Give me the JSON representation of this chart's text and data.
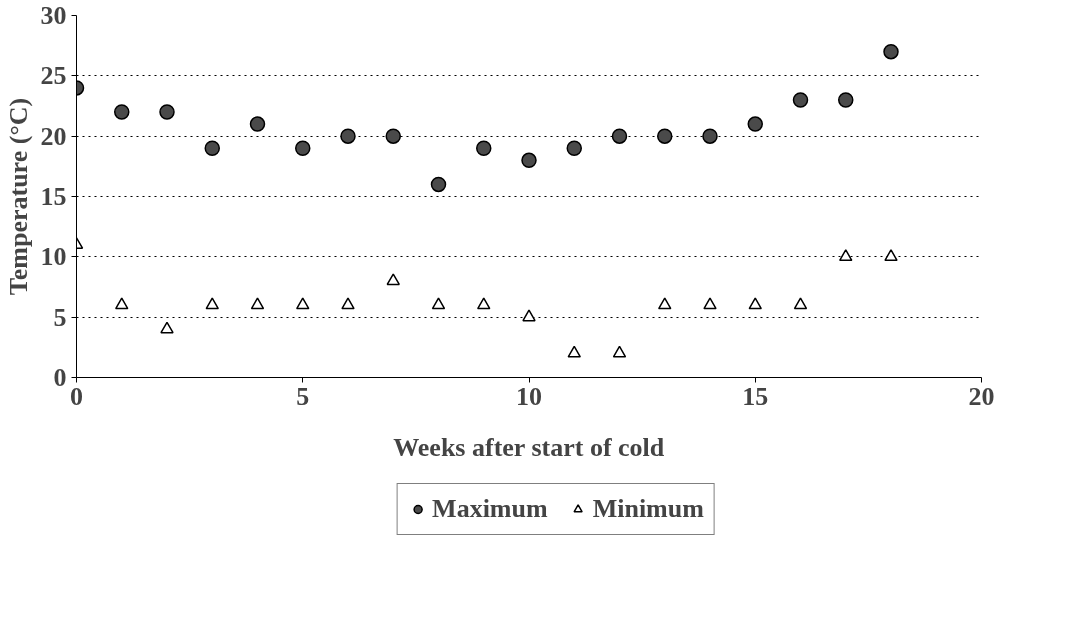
{
  "chart_data": {
    "type": "scatter",
    "xlabel": "Weeks after start of cold",
    "ylabel": "Temperature (°C)",
    "x": [
      0,
      1,
      2,
      3,
      4,
      5,
      6,
      7,
      8,
      9,
      10,
      11,
      12,
      13,
      14,
      15,
      16,
      17,
      18
    ],
    "series": [
      {
        "name": "Maximum",
        "color": "#4a4a4a",
        "marker": "circle",
        "values": [
          24,
          22,
          22,
          19,
          21,
          19,
          20,
          20,
          16,
          19,
          18,
          19,
          20,
          20,
          20,
          21,
          23,
          23,
          27
        ]
      },
      {
        "name": "Minimum",
        "color": "#ffffff",
        "marker": "triangle",
        "values": [
          11,
          6,
          4,
          6,
          6,
          6,
          6,
          8,
          6,
          6,
          5,
          2,
          2,
          6,
          6,
          6,
          6,
          10,
          10
        ]
      }
    ],
    "xlim": [
      0,
      20
    ],
    "xticks": [
      0,
      5,
      10,
      15,
      20
    ],
    "ylim": [
      0,
      30
    ],
    "yticks": [
      0,
      5,
      10,
      15,
      20,
      25,
      30
    ],
    "grid": "y",
    "legend": "bottom"
  }
}
